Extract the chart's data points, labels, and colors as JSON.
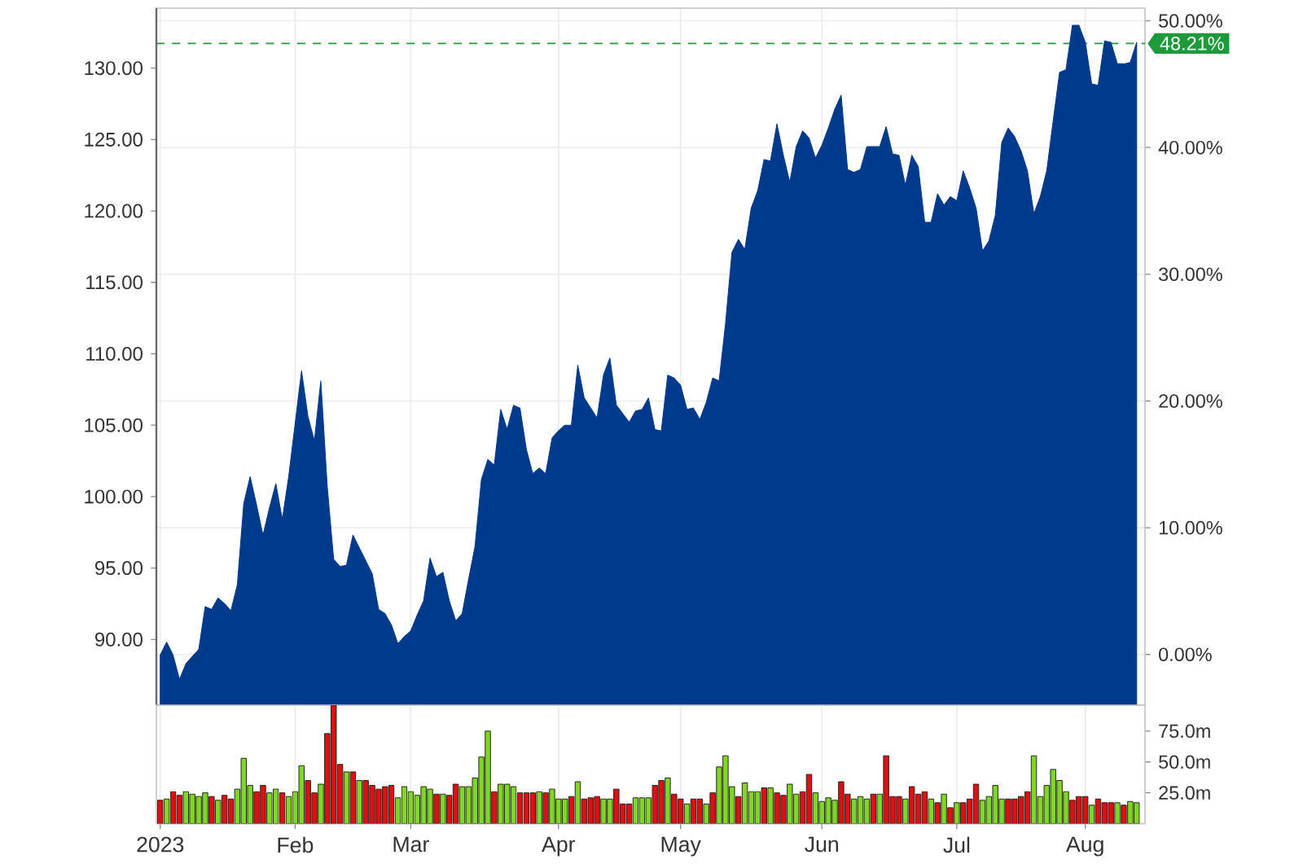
{
  "chart_data": [
    {
      "type": "area",
      "categories": [
        null,
        null,
        null,
        null,
        null,
        null,
        null,
        null,
        null,
        null,
        null,
        null,
        null,
        null,
        null,
        null,
        null,
        null,
        null,
        null,
        null,
        null,
        null,
        null,
        null,
        null,
        null,
        null,
        null,
        null,
        null,
        null,
        null,
        null,
        null,
        null,
        null,
        null,
        null,
        null,
        null,
        null,
        null,
        null,
        null,
        null,
        null,
        null,
        null,
        null,
        null,
        null,
        null,
        null,
        null,
        null,
        null,
        null,
        null,
        null,
        null,
        null,
        null,
        null,
        null,
        null,
        null,
        null,
        null,
        null,
        null,
        null,
        null,
        null,
        null,
        null,
        null,
        null,
        null,
        null,
        null,
        null,
        null,
        null,
        null,
        null,
        null,
        null,
        null,
        null,
        null,
        null,
        null,
        null,
        null,
        null,
        null,
        null,
        null,
        null,
        null,
        null,
        null,
        null,
        null,
        null,
        null,
        null,
        null,
        null,
        null,
        null,
        null,
        null,
        null,
        null,
        null,
        null,
        null,
        null,
        null,
        null,
        null,
        null,
        null,
        null,
        null,
        null,
        null,
        null,
        null,
        null,
        null,
        null,
        null,
        null,
        null,
        null,
        null,
        null,
        null,
        null,
        null,
        null,
        null,
        null,
        null,
        null,
        null,
        null,
        null,
        null,
        null
      ],
      "series": [
        {
          "color": "#003a8c",
          "values": [
            88.9,
            89.8,
            88.9,
            87.2,
            88.3,
            88.8,
            89.3,
            92.3,
            92.1,
            92.9,
            92.5,
            92.0,
            93.8,
            99.5,
            101.4,
            99.4,
            97.3,
            99.2,
            100.9,
            98.4,
            101.4,
            105.1,
            108.8,
            105.6,
            103.9,
            108.1,
            100.7,
            95.6,
            95.1,
            95.2,
            97.3,
            96.4,
            95.5,
            94.6,
            92.1,
            91.8,
            91.0,
            89.7,
            90.2,
            90.6,
            91.7,
            92.7,
            95.7,
            94.4,
            94.7,
            92.7,
            91.3,
            91.8,
            94.2,
            96.5,
            101.2,
            102.6,
            102.2,
            106.1,
            104.7,
            106.4,
            106.2,
            103.3,
            101.6,
            102.0,
            101.6,
            104.1,
            104.6,
            105.0,
            105.0,
            109.2,
            106.9,
            106.2,
            105.5,
            108.5,
            109.7,
            106.4,
            105.8,
            105.2,
            106.0,
            106.1,
            106.9,
            104.7,
            104.6,
            108.5,
            108.3,
            107.8,
            106.1,
            106.2,
            105.4,
            106.6,
            108.3,
            108.1,
            112.1,
            117.1,
            118.0,
            117.3,
            120.2,
            121.4,
            123.6,
            123.5,
            126.1,
            123.9,
            122.0,
            124.5,
            125.6,
            125.1,
            123.7,
            124.6,
            125.8,
            127.1,
            128.1,
            122.9,
            122.7,
            122.9,
            124.5,
            124.5,
            124.5,
            125.9,
            124.0,
            123.9,
            121.8,
            123.9,
            123.1,
            119.2,
            119.2,
            121.2,
            120.4,
            121.0,
            120.7,
            122.8,
            121.6,
            120.2,
            117.2,
            117.9,
            119.7,
            124.8,
            125.8,
            125.2,
            124.2,
            122.8,
            119.8,
            121.0,
            122.8,
            126.3,
            129.7,
            129.9,
            133.0,
            133.0,
            131.8,
            128.9,
            128.8,
            131.9,
            131.8,
            130.3,
            130.3,
            130.4,
            131.8
          ]
        }
      ],
      "ylim": [
        85.4,
        134.2
      ],
      "yticks": [
        {
          "value": 90,
          "label": "90.00"
        },
        {
          "value": 95,
          "label": "95.00"
        },
        {
          "value": 100,
          "label": "100.00"
        },
        {
          "value": 105,
          "label": "105.00"
        },
        {
          "value": 110,
          "label": "110.00"
        },
        {
          "value": 115,
          "label": "115.00"
        },
        {
          "value": 120,
          "label": "120.00"
        },
        {
          "value": 125,
          "label": "125.00"
        },
        {
          "value": 130,
          "label": "130.00"
        }
      ],
      "y2lim": [
        -4.0,
        51.0
      ],
      "y2ticks": [
        {
          "value": 0,
          "label": "0.00%"
        },
        {
          "value": 10,
          "label": "10.00%"
        },
        {
          "value": 20,
          "label": "20.00%"
        },
        {
          "value": 30,
          "label": "30.00%"
        },
        {
          "value": 40,
          "label": "40.00%"
        },
        {
          "value": 50,
          "label": "50.00%"
        }
      ],
      "ref_lines": [
        {
          "axis": "y2",
          "value": 48.21,
          "label": "48.21%",
          "color": "#1f9a3a",
          "line_style": "dashed"
        }
      ],
      "grid": true,
      "tick_labels": "y"
    },
    {
      "type": "bar",
      "categories": [
        "2023",
        null,
        null,
        null,
        null,
        null,
        null,
        null,
        null,
        null,
        null,
        null,
        null,
        null,
        null,
        null,
        null,
        null,
        null,
        null,
        null,
        "Feb",
        null,
        null,
        null,
        null,
        null,
        null,
        null,
        null,
        null,
        null,
        null,
        null,
        null,
        null,
        null,
        null,
        null,
        "Mar",
        null,
        null,
        null,
        null,
        null,
        null,
        null,
        null,
        null,
        null,
        null,
        null,
        null,
        null,
        null,
        null,
        null,
        null,
        null,
        null,
        null,
        null,
        "Apr",
        null,
        null,
        null,
        null,
        null,
        null,
        null,
        null,
        null,
        null,
        null,
        null,
        null,
        null,
        null,
        null,
        null,
        null,
        "May",
        null,
        null,
        null,
        null,
        null,
        null,
        null,
        null,
        null,
        null,
        null,
        null,
        null,
        null,
        null,
        null,
        null,
        null,
        null,
        null,
        null,
        "Jun",
        null,
        null,
        null,
        null,
        null,
        null,
        null,
        null,
        null,
        null,
        null,
        null,
        null,
        null,
        null,
        null,
        null,
        null,
        null,
        null,
        "Jul",
        null,
        null,
        null,
        null,
        null,
        null,
        null,
        null,
        null,
        null,
        null,
        null,
        null,
        null,
        null,
        null,
        null,
        null,
        null,
        "Aug",
        null,
        null,
        null,
        null,
        null,
        null,
        null,
        null
      ],
      "series": [
        {
          "axis": "y2",
          "values": [
            19,
            20,
            26,
            23,
            26,
            24,
            22,
            25,
            22,
            19,
            23,
            20,
            28,
            53,
            31,
            26,
            31,
            25,
            28,
            25,
            22,
            26,
            47,
            35,
            25,
            32,
            73,
            96,
            48,
            42,
            42,
            35,
            35,
            31,
            28,
            30,
            31,
            21,
            30,
            26,
            23,
            30,
            28,
            24,
            24,
            23,
            32,
            30,
            30,
            37,
            54,
            75,
            26,
            32,
            32,
            30,
            25,
            25,
            25,
            26,
            25,
            28,
            20,
            20,
            22,
            34,
            20,
            21,
            22,
            20,
            20,
            28,
            16,
            16,
            21,
            21,
            21,
            31,
            35,
            37,
            24,
            20,
            16,
            20,
            20,
            16,
            25,
            46,
            55,
            30,
            22,
            33,
            26,
            26,
            29,
            29,
            25,
            23,
            32,
            24,
            26,
            40,
            25,
            18,
            21,
            19,
            34,
            24,
            20,
            22,
            20,
            24,
            24,
            55,
            22,
            22,
            20,
            30,
            24,
            26,
            20,
            17,
            24,
            13,
            17,
            17,
            20,
            32,
            19,
            22,
            31,
            20,
            20,
            20,
            22,
            26,
            55,
            22,
            31,
            44,
            35,
            26,
            19,
            22,
            22,
            15,
            20,
            17,
            17,
            17,
            15,
            18,
            17
          ],
          "colors": [
            "#e01010",
            "#7fd623",
            "#e01010",
            "#e01010",
            "#7fd623",
            "#7fd623",
            "#7fd623",
            "#7fd623",
            "#e01010",
            "#7fd623",
            "#e01010",
            "#e01010",
            "#7fd623",
            "#7fd623",
            "#7fd623",
            "#e01010",
            "#e01010",
            "#7fd623",
            "#7fd623",
            "#e01010",
            "#7fd623",
            "#7fd623",
            "#7fd623",
            "#e01010",
            "#e01010",
            "#7fd623",
            "#e01010",
            "#e01010",
            "#e01010",
            "#7fd623",
            "#e01010",
            "#7fd623",
            "#e01010",
            "#e01010",
            "#e01010",
            "#e01010",
            "#e01010",
            "#7fd623",
            "#7fd623",
            "#7fd623",
            "#7fd623",
            "#7fd623",
            "#7fd623",
            "#e01010",
            "#7fd623",
            "#e01010",
            "#e01010",
            "#7fd623",
            "#7fd623",
            "#7fd623",
            "#7fd623",
            "#7fd623",
            "#e01010",
            "#7fd623",
            "#7fd623",
            "#7fd623",
            "#e01010",
            "#e01010",
            "#e01010",
            "#7fd623",
            "#e01010",
            "#7fd623",
            "#7fd623",
            "#7fd623",
            "#e01010",
            "#7fd623",
            "#e01010",
            "#e01010",
            "#e01010",
            "#7fd623",
            "#7fd623",
            "#e01010",
            "#e01010",
            "#e01010",
            "#7fd623",
            "#7fd623",
            "#7fd623",
            "#e01010",
            "#e01010",
            "#7fd623",
            "#e01010",
            "#e01010",
            "#7fd623",
            "#e01010",
            "#e01010",
            "#7fd623",
            "#e01010",
            "#7fd623",
            "#7fd623",
            "#7fd623",
            "#e01010",
            "#7fd623",
            "#7fd623",
            "#7fd623",
            "#e01010",
            "#7fd623",
            "#e01010",
            "#e01010",
            "#7fd623",
            "#7fd623",
            "#e01010",
            "#e01010",
            "#7fd623",
            "#7fd623",
            "#7fd623",
            "#7fd623",
            "#e01010",
            "#e01010",
            "#7fd623",
            "#7fd623",
            "#7fd623",
            "#e01010",
            "#7fd623",
            "#e01010",
            "#e01010",
            "#e01010",
            "#7fd623",
            "#e01010",
            "#e01010",
            "#e01010",
            "#7fd623",
            "#e01010",
            "#7fd623",
            "#e01010",
            "#7fd623",
            "#e01010",
            "#e01010",
            "#e01010",
            "#7fd623",
            "#7fd623",
            "#7fd623",
            "#7fd623",
            "#e01010",
            "#e01010",
            "#e01010",
            "#e01010",
            "#7fd623",
            "#7fd623",
            "#7fd623",
            "#7fd623",
            "#7fd623",
            "#7fd623",
            "#e01010",
            "#e01010",
            "#e01010",
            "#7fd623",
            "#e01010",
            "#e01010",
            "#e01010",
            "#7fd623",
            "#e01010",
            "#7fd623",
            "#7fd623"
          ]
        }
      ],
      "y2lim": [
        0,
        96
      ],
      "y2ticks": [
        {
          "value": 25,
          "label": "25.0m"
        },
        {
          "value": 50,
          "label": "50.0m"
        },
        {
          "value": 75,
          "label": "75.0m"
        }
      ],
      "grid": "x"
    }
  ]
}
